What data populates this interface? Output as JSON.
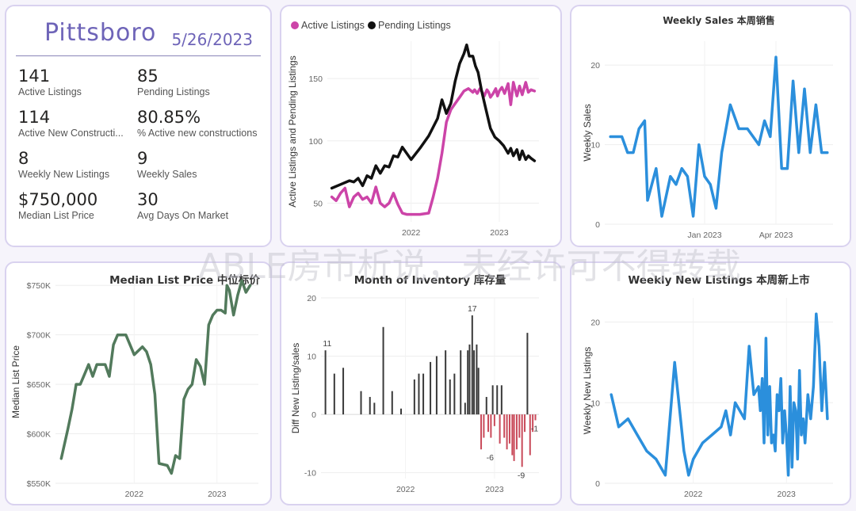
{
  "kpi": {
    "city": "Pittsboro",
    "date": "5/26/2023",
    "items": [
      {
        "value": "141",
        "label": "Active Listings"
      },
      {
        "value": "85",
        "label": "Pending Listings"
      },
      {
        "value": "114",
        "label": "Active New Constructi..."
      },
      {
        "value": "80.85%",
        "label": "% Active new constructions"
      },
      {
        "value": "8",
        "label": "Weekly New Listings"
      },
      {
        "value": "9",
        "label": "Weekly Sales"
      },
      {
        "value": "$750,000",
        "label": "Median List Price"
      },
      {
        "value": "30",
        "label": "Avg Days On Market"
      }
    ]
  },
  "watermark": "ABLE房市析说，未经许可不得转载",
  "colors": {
    "pink": "#cc44a8",
    "black": "#111111",
    "blue": "#2b8fdc",
    "green": "#527a5c",
    "bar_pos": "#3a3a3a",
    "bar_neg": "#c94a5a"
  },
  "chart_data": [
    {
      "id": "listings",
      "type": "line",
      "title": "",
      "legend": [
        "Active Listings",
        "Pending Listings"
      ],
      "ylabel": "Active Listings and Pending Listings",
      "xlabel": "",
      "ylim": [
        35,
        180
      ],
      "xlim": [
        2021.05,
        2023.45
      ],
      "yticks": [
        50,
        100,
        150
      ],
      "xticks": [
        {
          "v": 2022.0,
          "label": "2022"
        },
        {
          "v": 2023.0,
          "label": "2023"
        }
      ],
      "series": [
        {
          "name": "Active Listings",
          "color": "#cc44a8",
          "x": [
            2021.1,
            2021.15,
            2021.2,
            2021.25,
            2021.3,
            2021.35,
            2021.4,
            2021.45,
            2021.5,
            2021.55,
            2021.6,
            2021.65,
            2021.7,
            2021.75,
            2021.8,
            2021.85,
            2021.9,
            2021.95,
            2022.0,
            2022.1,
            2022.2,
            2022.25,
            2022.3,
            2022.35,
            2022.4,
            2022.45,
            2022.5,
            2022.55,
            2022.6,
            2022.65,
            2022.7,
            2022.72,
            2022.75,
            2022.78,
            2022.8,
            2022.83,
            2022.86,
            2022.88,
            2022.9,
            2022.93,
            2022.96,
            2022.98,
            2023.0,
            2023.03,
            2023.06,
            2023.1,
            2023.13,
            2023.16,
            2023.2,
            2023.23,
            2023.26,
            2023.3,
            2023.33,
            2023.36,
            2023.4
          ],
          "y": [
            55,
            52,
            58,
            62,
            47,
            55,
            58,
            53,
            55,
            50,
            63,
            50,
            47,
            50,
            58,
            49,
            42,
            41,
            41,
            41,
            42,
            55,
            70,
            90,
            115,
            125,
            130,
            135,
            140,
            142,
            139,
            141,
            138,
            142,
            140,
            136,
            141,
            139,
            135,
            138,
            142,
            136,
            140,
            143,
            138,
            146,
            129,
            147,
            136,
            144,
            137,
            147,
            139,
            141,
            140
          ]
        },
        {
          "name": "Pending Listings",
          "color": "#111111",
          "x": [
            2021.1,
            2021.2,
            2021.3,
            2021.35,
            2021.4,
            2021.45,
            2021.5,
            2021.55,
            2021.6,
            2021.65,
            2021.7,
            2021.75,
            2021.8,
            2021.85,
            2021.9,
            2022.0,
            2022.1,
            2022.2,
            2022.25,
            2022.3,
            2022.35,
            2022.4,
            2022.45,
            2022.5,
            2022.55,
            2022.6,
            2022.63,
            2022.66,
            2022.7,
            2022.73,
            2022.76,
            2022.8,
            2022.85,
            2022.9,
            2022.95,
            2023.0,
            2023.05,
            2023.1,
            2023.13,
            2023.16,
            2023.2,
            2023.23,
            2023.26,
            2023.3,
            2023.33,
            2023.36,
            2023.4
          ],
          "y": [
            62,
            65,
            68,
            67,
            70,
            64,
            72,
            70,
            80,
            74,
            80,
            79,
            88,
            87,
            95,
            85,
            94,
            104,
            111,
            118,
            133,
            122,
            130,
            148,
            162,
            170,
            177,
            168,
            168,
            160,
            155,
            140,
            125,
            110,
            103,
            100,
            96,
            90,
            94,
            88,
            93,
            85,
            92,
            85,
            88,
            86,
            84
          ]
        }
      ]
    },
    {
      "id": "weekly_sales",
      "type": "line",
      "title": "Weekly Sales 本周销售",
      "ylabel": "Weekly Sales",
      "xlabel": "",
      "ylim": [
        0,
        23
      ],
      "xlim": [
        2022.65,
        2023.45
      ],
      "yticks": [
        0,
        10,
        20
      ],
      "xticks": [
        {
          "v": 2023.0,
          "label": "Jan 2023"
        },
        {
          "v": 2023.25,
          "label": "Apr 2023"
        }
      ],
      "series": [
        {
          "name": "Weekly Sales",
          "color": "#2b8fdc",
          "x": [
            2022.67,
            2022.69,
            2022.71,
            2022.73,
            2022.75,
            2022.77,
            2022.79,
            2022.8,
            2022.83,
            2022.85,
            2022.88,
            2022.9,
            2022.92,
            2022.94,
            2022.96,
            2022.98,
            2023.0,
            2023.02,
            2023.04,
            2023.06,
            2023.09,
            2023.12,
            2023.15,
            2023.17,
            2023.19,
            2023.21,
            2023.23,
            2023.25,
            2023.27,
            2023.29,
            2023.31,
            2023.33,
            2023.35,
            2023.37,
            2023.39,
            2023.41,
            2023.43
          ],
          "y": [
            11,
            11,
            11,
            9,
            9,
            12,
            13,
            3,
            7,
            1,
            6,
            5,
            7,
            6,
            1,
            10,
            6,
            5,
            2,
            9,
            15,
            12,
            12,
            11,
            10,
            13,
            11,
            21,
            7,
            7,
            18,
            9,
            17,
            9,
            15,
            9,
            9
          ]
        }
      ]
    },
    {
      "id": "median_list_price",
      "type": "line",
      "title": "Median List Price 中位标价",
      "ylabel": "Median List Price",
      "xlabel": "",
      "ylim": [
        550,
        755
      ],
      "xlim": [
        2021.05,
        2023.5
      ],
      "yticks": [
        550,
        600,
        650,
        700,
        750
      ],
      "ytick_labels": [
        "$550K",
        "$600K",
        "$650K",
        "$700K",
        "$750K"
      ],
      "xticks": [
        {
          "v": 2022.0,
          "label": "2022"
        },
        {
          "v": 2023.0,
          "label": "2023"
        }
      ],
      "series": [
        {
          "name": "Median List Price",
          "color": "#527a5c",
          "x": [
            2021.12,
            2021.2,
            2021.25,
            2021.3,
            2021.35,
            2021.4,
            2021.45,
            2021.5,
            2021.55,
            2021.6,
            2021.65,
            2021.7,
            2021.75,
            2021.8,
            2021.85,
            2021.9,
            2022.0,
            2022.1,
            2022.15,
            2022.2,
            2022.25,
            2022.3,
            2022.4,
            2022.45,
            2022.5,
            2022.55,
            2022.6,
            2022.65,
            2022.7,
            2022.75,
            2022.8,
            2022.85,
            2022.9,
            2022.95,
            2023.0,
            2023.05,
            2023.1,
            2023.12,
            2023.15,
            2023.2,
            2023.25,
            2023.3,
            2023.35,
            2023.4
          ],
          "y": [
            575,
            605,
            625,
            650,
            650,
            660,
            670,
            658,
            670,
            670,
            670,
            658,
            690,
            700,
            700,
            700,
            680,
            688,
            683,
            670,
            640,
            570,
            568,
            560,
            578,
            575,
            635,
            645,
            650,
            675,
            668,
            650,
            710,
            720,
            725,
            725,
            722,
            750,
            745,
            720,
            740,
            755,
            743,
            750
          ]
        }
      ]
    },
    {
      "id": "months_inventory",
      "type": "bar",
      "title": "Month of Inventory 库存量",
      "ylabel": "Diff New Listing/sales",
      "xlabel": "",
      "ylim": [
        -11,
        20
      ],
      "xlim": [
        2021.05,
        2023.5
      ],
      "yticks": [
        -10,
        0,
        10,
        20
      ],
      "xticks": [
        {
          "v": 2022.0,
          "label": "2022"
        },
        {
          "v": 2023.0,
          "label": "2023"
        }
      ],
      "annotations": [
        {
          "x": 2021.12,
          "y": 11,
          "label": "11"
        },
        {
          "x": 2022.75,
          "y": 17,
          "label": "17"
        },
        {
          "x": 2022.95,
          "y": -6,
          "label": "-6"
        },
        {
          "x": 2023.3,
          "y": -9,
          "label": "-9"
        },
        {
          "x": 2023.45,
          "y": -1,
          "label": "-1"
        }
      ],
      "x": [
        2021.1,
        2021.2,
        2021.3,
        2021.5,
        2021.6,
        2021.65,
        2021.75,
        2021.85,
        2021.95,
        2022.1,
        2022.15,
        2022.2,
        2022.28,
        2022.35,
        2022.45,
        2022.5,
        2022.55,
        2022.62,
        2022.67,
        2022.7,
        2022.72,
        2022.75,
        2022.77,
        2022.8,
        2022.82,
        2022.85,
        2022.88,
        2022.91,
        2022.93,
        2022.96,
        2022.98,
        2023.0,
        2023.03,
        2023.06,
        2023.08,
        2023.11,
        2023.14,
        2023.17,
        2023.2,
        2023.22,
        2023.25,
        2023.28,
        2023.31,
        2023.34,
        2023.37,
        2023.4,
        2023.43,
        2023.46
      ],
      "values": [
        11,
        7,
        8,
        4,
        3,
        2,
        15,
        4,
        1,
        6,
        7,
        7,
        9,
        10,
        11,
        6,
        7,
        11,
        2,
        11,
        12,
        17,
        11,
        12,
        8,
        -6,
        -4,
        3,
        -3,
        -4,
        5,
        -2,
        5,
        -5,
        5,
        -4,
        -6,
        -5,
        -7,
        -8,
        -6,
        -4,
        -9,
        -3,
        14,
        -7,
        -3,
        -1
      ]
    },
    {
      "id": "weekly_new_listings",
      "type": "line",
      "title": "Weekly New Listings 本周新上市",
      "ylabel": "Weekly New Listings",
      "xlabel": "",
      "ylim": [
        0,
        23
      ],
      "xlim": [
        2021.05,
        2023.5
      ],
      "yticks": [
        0,
        10,
        20
      ],
      "xticks": [
        {
          "v": 2022.0,
          "label": "2022"
        },
        {
          "v": 2023.0,
          "label": "2023"
        }
      ],
      "series": [
        {
          "name": "Weekly New Listings",
          "color": "#2b8fdc",
          "x": [
            2021.12,
            2021.2,
            2021.3,
            2021.4,
            2021.5,
            2021.6,
            2021.7,
            2021.8,
            2021.9,
            2021.95,
            2022.0,
            2022.1,
            2022.2,
            2022.3,
            2022.35,
            2022.4,
            2022.45,
            2022.5,
            2022.55,
            2022.6,
            2022.65,
            2022.7,
            2022.72,
            2022.74,
            2022.76,
            2022.78,
            2022.8,
            2022.82,
            2022.84,
            2022.86,
            2022.88,
            2022.9,
            2022.92,
            2022.94,
            2022.96,
            2022.98,
            2023.0,
            2023.02,
            2023.04,
            2023.06,
            2023.08,
            2023.1,
            2023.12,
            2023.14,
            2023.16,
            2023.18,
            2023.2,
            2023.23,
            2023.26,
            2023.29,
            2023.32,
            2023.35,
            2023.38,
            2023.41,
            2023.44
          ],
          "y": [
            11,
            7,
            8,
            6,
            4,
            3,
            1,
            15,
            4,
            1,
            3,
            5,
            6,
            7,
            9,
            6,
            10,
            9,
            8,
            17,
            11,
            12,
            9,
            13,
            5,
            18,
            6,
            12,
            5,
            6,
            4,
            11,
            9,
            13,
            5,
            9,
            6,
            1,
            12,
            2,
            10,
            9,
            3,
            14,
            6,
            8,
            5,
            11,
            8,
            12,
            21,
            17,
            9,
            15,
            8
          ]
        }
      ]
    }
  ]
}
